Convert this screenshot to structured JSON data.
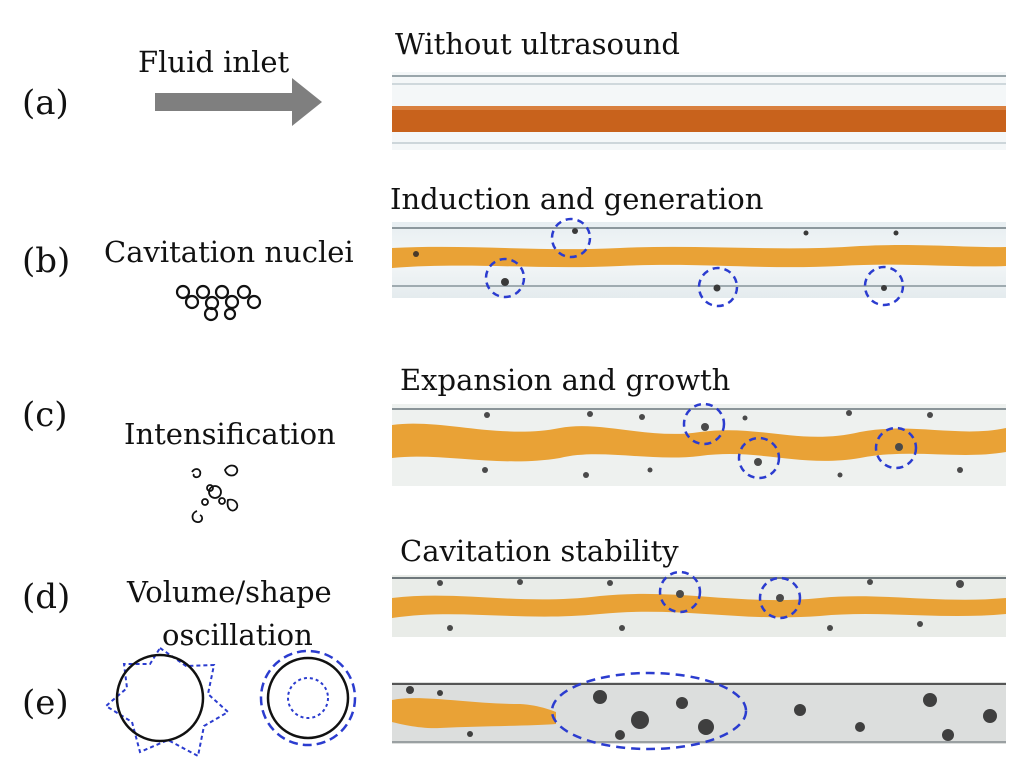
{
  "rows": [
    {
      "label": "(a)",
      "description": "Fluid inlet",
      "caption": "Without ultrasound"
    },
    {
      "label": "(b)",
      "description": "Cavitation nuclei",
      "caption": "Induction and generation"
    },
    {
      "label": "(c)",
      "description": "Intensification",
      "caption": "Expansion and growth"
    },
    {
      "label": "(d)",
      "description_lines": [
        "Volume/shape",
        "oscillation"
      ],
      "caption": "Cavitation stability"
    },
    {
      "label": "(e)",
      "description": "",
      "caption": ""
    }
  ],
  "colors": {
    "arrow": "#7f7f7f",
    "fluid_plain": "#c8621c",
    "fluid_cavitating": "#e9a236",
    "channel_wall": "#b9c3c8",
    "highlight_circle": "#2b3ccf",
    "bubble": "#3a3a3a"
  },
  "icons": {
    "a": "arrow-right-icon",
    "b": "nuclei-cluster-icon",
    "c": "intensification-icon",
    "e_left": "shape-oscillation-icon",
    "e_right": "volume-oscillation-icon"
  }
}
